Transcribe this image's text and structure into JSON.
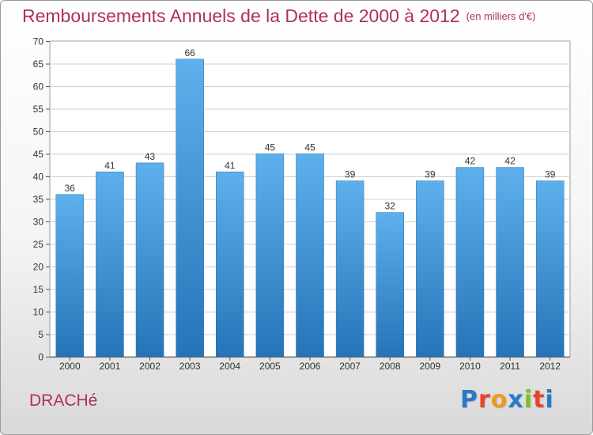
{
  "chart_data": {
    "type": "bar",
    "title": "Remboursements Annuels de la Dette de 2000 à 2012",
    "subtitle": "(en milliers d'€)",
    "categories": [
      "2000",
      "2001",
      "2002",
      "2003",
      "2004",
      "2005",
      "2006",
      "2007",
      "2008",
      "2009",
      "2010",
      "2011",
      "2012"
    ],
    "values": [
      36,
      41,
      43,
      66,
      41,
      45,
      45,
      39,
      32,
      39,
      42,
      42,
      39
    ],
    "ylim": [
      0,
      70
    ],
    "yticks": [
      0,
      5,
      10,
      15,
      20,
      25,
      30,
      35,
      40,
      45,
      50,
      55,
      60,
      65,
      70
    ],
    "grid": true,
    "bar_color": "#3b8fd6"
  },
  "footer": {
    "city": "DRACHé",
    "logo": [
      "P",
      "r",
      "o",
      "x",
      "i",
      "t",
      "i"
    ],
    "logo_colors": [
      "#2a79c9",
      "#e8442c",
      "#ef9a1d",
      "#2a79c9",
      "#7bbf2a",
      "#e8442c",
      "#2a79c9"
    ]
  }
}
